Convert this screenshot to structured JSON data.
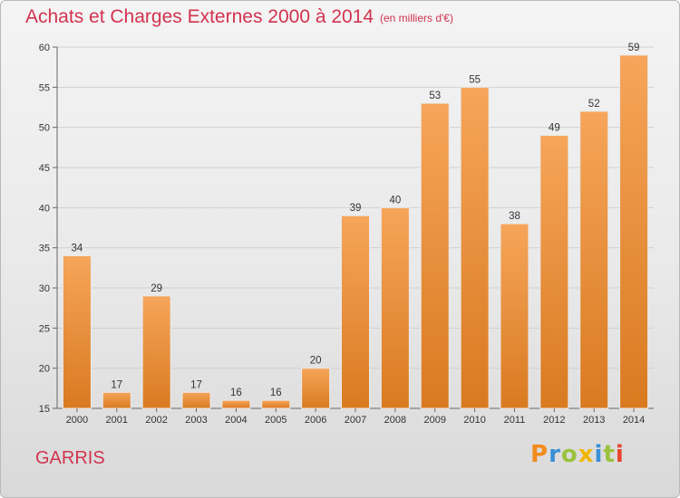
{
  "header": {
    "title": "Achats et Charges Externes 2000 à 2014",
    "subtitle": "(en milliers d'€)"
  },
  "footer": {
    "commune": "GARRIS",
    "logo": "Proxiti"
  },
  "colors": {
    "title": "#d2334f",
    "bar_light": "#f6a55a",
    "bar_dark": "#d97a20",
    "grid": "#d0d0d0",
    "logo_letters": [
      "#f28c1b",
      "#3a8fd6",
      "#9ac23c",
      "#f2b705",
      "#3a8fd6",
      "#9ac23c",
      "#e8452c"
    ]
  },
  "chart_data": {
    "type": "bar",
    "title": "Achats et Charges Externes 2000 à 2014",
    "subtitle": "(en milliers d'€)",
    "categories": [
      "2000",
      "2001",
      "2002",
      "2003",
      "2004",
      "2005",
      "2006",
      "2007",
      "2008",
      "2009",
      "2010",
      "2011",
      "2012",
      "2013",
      "2014"
    ],
    "values": [
      34,
      17,
      29,
      17,
      16,
      16,
      20,
      39,
      40,
      53,
      55,
      38,
      49,
      52,
      59
    ],
    "ylim": [
      15,
      60
    ],
    "yticks": [
      15,
      20,
      25,
      30,
      35,
      40,
      45,
      50,
      55,
      60
    ],
    "grid": true,
    "xlabel": "",
    "ylabel": ""
  }
}
